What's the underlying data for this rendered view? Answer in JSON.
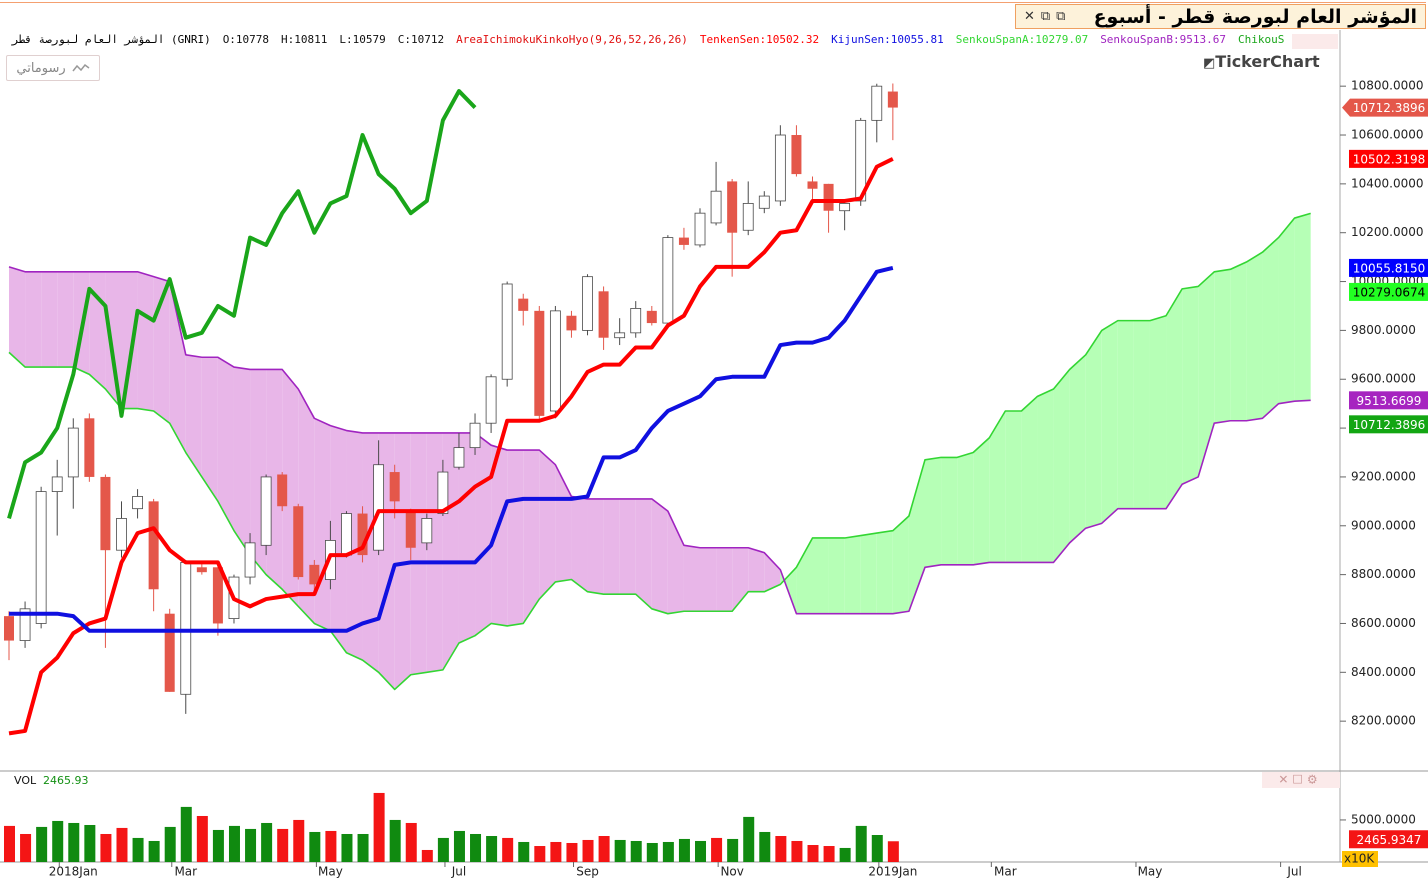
{
  "title": "المؤشر العام لبورصة قطر - أسبوع",
  "drawings_button": "رسوماتي",
  "logo": "TickerChart",
  "chart_data": [
    {
      "type": "candlestick",
      "symbol": "المؤشر العام لبورصة قطر (GNRI)",
      "ohlc_text": [
        "O:10778",
        "H:10811",
        "L:10579",
        "C:10712"
      ],
      "indicator": "AreaIchimokuKinkoHyo(9,26,52,26,26)",
      "up_color": "#ffffff",
      "up_edge": "#4a4a4a",
      "down_color": "#e4574a",
      "open": [
        8630,
        8530,
        8600,
        9140,
        9200,
        9440,
        9200,
        8900,
        9070,
        9100,
        8640,
        8310,
        8830,
        8830,
        8620,
        8790,
        8920,
        9210,
        9080,
        8840,
        8780,
        8880,
        9050,
        8900,
        9220,
        9060,
        8930,
        9050,
        9240,
        9320,
        9420,
        9600,
        9930,
        9880,
        9470,
        9860,
        9800,
        9960,
        9770,
        9790,
        9880,
        9830,
        10180,
        10150,
        10240,
        10410,
        10210,
        10300,
        10330,
        10600,
        10410,
        10400,
        10290,
        10330,
        10660,
        10778
      ],
      "high": [
        8650,
        8690,
        9160,
        9270,
        9440,
        9460,
        9210,
        9100,
        9150,
        9110,
        8660,
        8860,
        8850,
        8850,
        8800,
        8970,
        9210,
        9220,
        9090,
        8860,
        9020,
        9060,
        9080,
        9350,
        9250,
        9070,
        9050,
        9270,
        9380,
        9460,
        9620,
        10000,
        9950,
        9900,
        9900,
        9880,
        10030,
        9980,
        9850,
        9920,
        9900,
        10190,
        10220,
        10300,
        10490,
        10420,
        10410,
        10370,
        10640,
        10640,
        10430,
        10400,
        10330,
        10670,
        10810,
        10811
      ],
      "low": [
        8450,
        8500,
        8580,
        8960,
        9070,
        9180,
        8500,
        8870,
        9030,
        8650,
        8320,
        8230,
        8800,
        8550,
        8600,
        8760,
        8880,
        9060,
        8780,
        8730,
        8740,
        8870,
        8850,
        8880,
        9030,
        8860,
        8900,
        9040,
        9230,
        9290,
        9380,
        9570,
        9820,
        9430,
        9440,
        9770,
        9780,
        9720,
        9740,
        9770,
        9820,
        9820,
        10130,
        10140,
        10230,
        10020,
        10190,
        10280,
        10310,
        10430,
        10330,
        10200,
        10210,
        10310,
        10570,
        10579
      ],
      "close": [
        8530,
        8660,
        9140,
        9200,
        9400,
        9200,
        8900,
        9030,
        9120,
        8740,
        8320,
        8850,
        8810,
        8600,
        8790,
        8930,
        9200,
        9080,
        8790,
        8760,
        8940,
        9050,
        8880,
        9250,
        9100,
        8910,
        9030,
        9220,
        9320,
        9420,
        9610,
        9990,
        9880,
        9450,
        9880,
        9800,
        10020,
        9770,
        9790,
        9890,
        9830,
        10180,
        10150,
        10280,
        10370,
        10200,
        10320,
        10350,
        10600,
        10440,
        10380,
        10290,
        10320,
        10660,
        10800,
        10712.3896
      ],
      "tag": {
        "label": "10712.3896",
        "color": "#e4574a",
        "text_color": "#ffffff"
      },
      "lines": [
        {
          "legend": "TenkenSen:10502.32",
          "color": "#ff0000",
          "style": "thick",
          "values": [
            8150,
            8160,
            8400,
            8460,
            8560,
            8600,
            8620,
            8850,
            8970,
            8990,
            8900,
            8850,
            8850,
            8850,
            8700,
            8670,
            8700,
            8710,
            8720,
            8720,
            8880,
            8880,
            8910,
            9060,
            9060,
            9060,
            9060,
            9060,
            9100,
            9160,
            9200,
            9430,
            9430,
            9430,
            9450,
            9530,
            9630,
            9660,
            9660,
            9730,
            9730,
            9820,
            9860,
            9980,
            10060,
            10060,
            10060,
            10120,
            10200,
            10210,
            10330,
            10330,
            10330,
            10340,
            10470,
            10502.3198
          ],
          "tag": {
            "label": "10502.3198",
            "color": "#ff0000",
            "text_color": "#ffffff"
          }
        },
        {
          "legend": "KijunSen:10055.81",
          "color": "#1010e0",
          "style": "thick",
          "values": [
            8640,
            8640,
            8640,
            8640,
            8630,
            8570,
            8570,
            8570,
            8570,
            8570,
            8570,
            8570,
            8570,
            8570,
            8570,
            8570,
            8570,
            8570,
            8570,
            8570,
            8570,
            8570,
            8600,
            8620,
            8840,
            8850,
            8850,
            8850,
            8850,
            8850,
            8920,
            9100,
            9110,
            9110,
            9110,
            9110,
            9120,
            9280,
            9280,
            9310,
            9400,
            9470,
            9500,
            9530,
            9600,
            9610,
            9610,
            9610,
            9740,
            9750,
            9750,
            9770,
            9840,
            9940,
            10040,
            10055.815
          ],
          "tag": {
            "label": "10055.8150",
            "color": "#0000ff",
            "text_color": "#ffffff"
          }
        },
        {
          "legend": "SenkouSpanA:10279.07",
          "color": "#33d633",
          "style": "thin",
          "values": [
            9710,
            9650,
            9650,
            9650,
            9650,
            9620,
            9560,
            9480,
            9480,
            9470,
            9420,
            9300,
            9200,
            9100,
            8980,
            8880,
            8800,
            8740,
            8670,
            8600,
            8570,
            8480,
            8450,
            8400,
            8330,
            8390,
            8400,
            8410,
            8520,
            8550,
            8600,
            8590,
            8600,
            8700,
            8770,
            8780,
            8730,
            8720,
            8720,
            8720,
            8660,
            8640,
            8650,
            8650,
            8650,
            8650,
            8730,
            8730,
            8760,
            8830,
            8950,
            8950,
            8950,
            8960,
            8970,
            8980,
            9040,
            9270,
            9280,
            9280,
            9300,
            9360,
            9470,
            9470,
            9530,
            9560,
            9640,
            9700,
            9800,
            9840,
            9840,
            9840,
            9860,
            9970,
            9980,
            10040,
            10050,
            10080,
            10120,
            10180,
            10260,
            10279.0674
          ],
          "tag": {
            "label": "10279.0674",
            "color": "#22ff22",
            "text_color": "#000000"
          }
        },
        {
          "legend": "SenkouSpanB:9513.67",
          "color": "#a024c0",
          "style": "thin",
          "values": [
            10060,
            10040,
            10040,
            10040,
            10040,
            10040,
            10040,
            10040,
            10040,
            10020,
            10000,
            9700,
            9690,
            9690,
            9650,
            9640,
            9640,
            9640,
            9560,
            9440,
            9410,
            9390,
            9380,
            9380,
            9380,
            9380,
            9380,
            9380,
            9380,
            9380,
            9330,
            9310,
            9310,
            9310,
            9250,
            9120,
            9110,
            9110,
            9110,
            9110,
            9110,
            9060,
            8920,
            8910,
            8910,
            8910,
            8910,
            8890,
            8820,
            8640,
            8640,
            8640,
            8640,
            8640,
            8640,
            8640,
            8650,
            8830,
            8840,
            8840,
            8840,
            8850,
            8850,
            8850,
            8850,
            8850,
            8930,
            8990,
            9010,
            9070,
            9070,
            9070,
            9070,
            9170,
            9200,
            9420,
            9430,
            9430,
            9440,
            9500,
            9510,
            9513.6699
          ],
          "tag": {
            "label": "9513.6699",
            "color": "#a624c0",
            "text_color": "#ffffff"
          }
        },
        {
          "legend": "ChikouS",
          "color": "#1aa61a",
          "style": "thick",
          "values": [
            9030,
            9260,
            9300,
            9400,
            9620,
            9970,
            9900,
            9450,
            9880,
            9840,
            10010,
            9770,
            9790,
            9900,
            9860,
            10180,
            10150,
            10280,
            10370,
            10200,
            10320,
            10350,
            10600,
            10440,
            10380,
            10280,
            10330,
            10660,
            10780,
            10712.3896
          ],
          "tag": {
            "label": "10712.3896",
            "color": "#13a613",
            "text_color": "#ffffff"
          }
        }
      ],
      "cloud": {
        "lines": [
          2,
          3
        ],
        "up_color": "#b6ffb6",
        "down_color": "#e8b6e8"
      },
      "ylim": [
        8000,
        11030
      ],
      "yticks": [
        {
          "value": 8200,
          "label": "8200.0000"
        },
        {
          "value": 8400,
          "label": "8400.0000"
        },
        {
          "value": 8600,
          "label": "8600.0000"
        },
        {
          "value": 8800,
          "label": "8800.0000"
        },
        {
          "value": 9000,
          "label": "9000.0000"
        },
        {
          "value": 9200,
          "label": "9200.0000"
        },
        {
          "value": 9400,
          "label": "9400.0000"
        },
        {
          "value": 9600,
          "label": "9600.0000"
        },
        {
          "value": 9800,
          "label": "9800.0000"
        },
        {
          "value": 10000,
          "label": "10000.0000"
        },
        {
          "value": 10200,
          "label": "10200.0000"
        },
        {
          "value": 10400,
          "label": "10400.0000"
        },
        {
          "value": 10600,
          "label": "10600.0000"
        },
        {
          "value": 10800,
          "label": "10800.0000"
        }
      ]
    },
    {
      "type": "bar",
      "legend": "VOL",
      "last_text": "2465.93",
      "last_color": "#139013",
      "unit_badge": "x10K",
      "categories": [
        null,
        null,
        null,
        null,
        "2018Jan",
        null,
        null,
        null,
        null,
        null,
        null,
        "Mar",
        null,
        null,
        null,
        null,
        null,
        null,
        null,
        null,
        "May",
        null,
        null,
        null,
        null,
        null,
        null,
        null,
        "Jul",
        null,
        null,
        null,
        null,
        null,
        null,
        null,
        "Sep",
        null,
        null,
        null,
        null,
        null,
        null,
        null,
        null,
        "Nov",
        null,
        null,
        null,
        null,
        null,
        null,
        null,
        null,
        null,
        "2019Jan",
        null,
        null,
        null,
        null,
        null,
        null,
        "Mar",
        null,
        null,
        null,
        null,
        null,
        null,
        null,
        null,
        "May",
        null,
        null,
        null,
        null,
        null,
        null,
        null,
        null,
        "Jul",
        null,
        null
      ],
      "values": [
        4290,
        3330,
        4170,
        4880,
        4640,
        4400,
        3330,
        4050,
        2860,
        2500,
        4170,
        6550,
        5470,
        3810,
        4290,
        3930,
        4640,
        3930,
        5000,
        3570,
        3690,
        3330,
        3330,
        8210,
        5000,
        4640,
        1430,
        2860,
        3690,
        3330,
        3090,
        2860,
        2380,
        1900,
        2380,
        2260,
        2620,
        3090,
        2620,
        2500,
        2260,
        2380,
        2740,
        2500,
        2860,
        2740,
        5360,
        3570,
        3090,
        2500,
        2020,
        1900,
        1670,
        4290,
        3210,
        2465.9347,
        null,
        null,
        null,
        null,
        null,
        null,
        null,
        null,
        null,
        null,
        null,
        null,
        null,
        null,
        null,
        null,
        null,
        null,
        null,
        null,
        null,
        null,
        null,
        null,
        null,
        null,
        null
      ],
      "colors": [
        "#f41515",
        "#f41515",
        "#108a10",
        "#108a10",
        "#108a10",
        "#108a10",
        "#f41515",
        "#f41515",
        "#108a10",
        "#108a10",
        "#108a10",
        "#108a10",
        "#f41515",
        "#108a10",
        "#108a10",
        "#108a10",
        "#108a10",
        "#f41515",
        "#f41515",
        "#108a10",
        "#f41515",
        "#108a10",
        "#108a10",
        "#f41515",
        "#108a10",
        "#f41515",
        "#f41515",
        "#108a10",
        "#108a10",
        "#108a10",
        "#108a10",
        "#f41515",
        "#108a10",
        "#f41515",
        "#f41515",
        "#f41515",
        "#f41515",
        "#f41515",
        "#108a10",
        "#108a10",
        "#108a10",
        "#108a10",
        "#108a10",
        "#108a10",
        "#f41515",
        "#108a10",
        "#108a10",
        "#108a10",
        "#f41515",
        "#f41515",
        "#f41515",
        "#f41515",
        "#108a10",
        "#108a10",
        "#108a10",
        "#f41515",
        null,
        null,
        null,
        null,
        null,
        null,
        null,
        null,
        null,
        null,
        null,
        null,
        null,
        null,
        null,
        null,
        null,
        null,
        null,
        null,
        null,
        null,
        null,
        null,
        null,
        null,
        null
      ],
      "tag": {
        "label": "2465.9347",
        "color": "#f41515",
        "text_color": "#ffffff"
      },
      "ylim": [
        0,
        10700
      ],
      "yticks": [
        {
          "value": 5000,
          "label": "5000.0000"
        }
      ]
    }
  ]
}
